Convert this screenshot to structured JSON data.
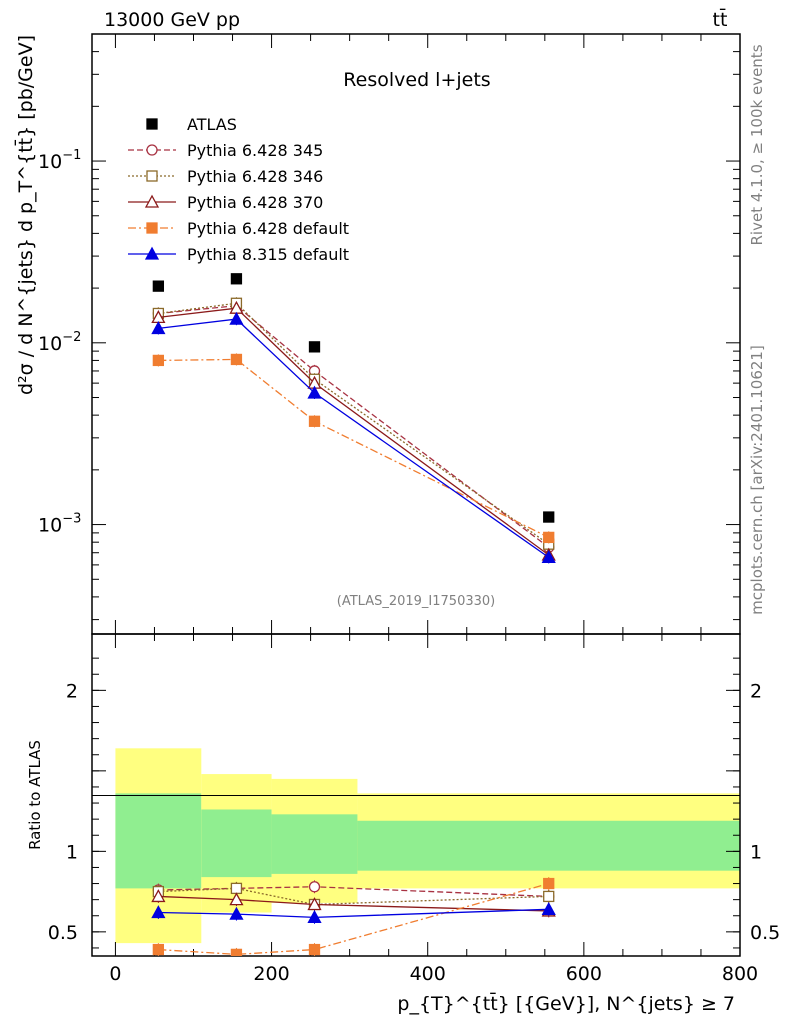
{
  "header": {
    "energy_label": "13000 GeV pp",
    "process_label": "tt̄"
  },
  "side_labels": {
    "rivet": "Rivet 4.1.0, ≥ 100k events",
    "source": "mcplots.cern.ch [arXiv:2401.10621]"
  },
  "chart_data": [
    {
      "type": "line",
      "panel": "main",
      "title": "Resolved l+jets",
      "analysis_tag": "(ATLAS_2019_I1750330)",
      "ylabel": "d²σ / d N^{jets} d p_T^{tt̄} [pb/GeV]",
      "yscale": "log",
      "ylim": [
        0.00025,
        0.5
      ],
      "xlim": [
        -30,
        800
      ],
      "ytick_labels": [
        "10^-1",
        "10^-2",
        "10^-3"
      ],
      "x_bins": [
        [
          0,
          110
        ],
        [
          110,
          200
        ],
        [
          200,
          310
        ],
        [
          310,
          800
        ]
      ],
      "x": [
        55,
        155,
        255,
        555
      ],
      "series": [
        {
          "name": "ATLAS",
          "color": "#000000",
          "marker": "square",
          "values": [
            0.0205,
            0.0225,
            0.0095,
            0.0011
          ]
        },
        {
          "name": "Pythia 6.428 345",
          "color": "#a83242",
          "dash": "6,3",
          "marker": "circle-open",
          "values": [
            0.0145,
            0.016,
            0.007,
            0.00075
          ]
        },
        {
          "name": "Pythia 6.428 346",
          "color": "#8b6a2a",
          "dash": "2,2",
          "marker": "square-open",
          "values": [
            0.0145,
            0.0165,
            0.0063,
            0.00078
          ]
        },
        {
          "name": "Pythia 6.428 370",
          "color": "#8b1a1a",
          "dash": "",
          "marker": "triangle-open",
          "values": [
            0.0138,
            0.0155,
            0.006,
            0.00068
          ]
        },
        {
          "name": "Pythia 6.428 default",
          "color": "#f07d30",
          "dash": "8,3,2,3",
          "marker": "square",
          "values": [
            0.008,
            0.0081,
            0.0037,
            0.00085
          ]
        },
        {
          "name": "Pythia 8.315 default",
          "color": "#0000e0",
          "dash": "",
          "marker": "triangle",
          "values": [
            0.012,
            0.0135,
            0.0053,
            0.00066
          ]
        }
      ]
    },
    {
      "type": "line",
      "panel": "ratio",
      "ylabel": "Ratio to ATLAS",
      "xlabel": "p_{T}^{tt̄} [{GeV}], N^{jets} ≥ 7",
      "ylim": [
        0.35,
        2.35
      ],
      "xlim": [
        -30,
        800
      ],
      "xticks": [
        0,
        200,
        400,
        600,
        800
      ],
      "yticks": [
        0.5,
        1,
        2
      ],
      "band_bins": [
        [
          0,
          110
        ],
        [
          110,
          200
        ],
        [
          200,
          310
        ],
        [
          310,
          800
        ]
      ],
      "yellow_band": [
        [
          0.43,
          1.64
        ],
        [
          0.62,
          1.48
        ],
        [
          0.68,
          1.45
        ],
        [
          0.77,
          1.36
        ]
      ],
      "green_band": [
        [
          0.77,
          1.36
        ],
        [
          0.84,
          1.26
        ],
        [
          0.86,
          1.23
        ],
        [
          0.88,
          1.19
        ]
      ],
      "x": [
        55,
        155,
        255,
        555
      ],
      "series": [
        {
          "name": "Pythia 6.428 345",
          "values": [
            0.76,
            0.77,
            0.78,
            0.72
          ]
        },
        {
          "name": "Pythia 6.428 346",
          "values": [
            0.75,
            0.77,
            0.67,
            0.72
          ]
        },
        {
          "name": "Pythia 6.428 370",
          "values": [
            0.72,
            0.7,
            0.67,
            0.63
          ]
        },
        {
          "name": "Pythia 6.428 default",
          "values": [
            0.39,
            0.36,
            0.39,
            0.8
          ]
        },
        {
          "name": "Pythia 8.315 default",
          "values": [
            0.62,
            0.61,
            0.59,
            0.64
          ]
        }
      ]
    }
  ]
}
